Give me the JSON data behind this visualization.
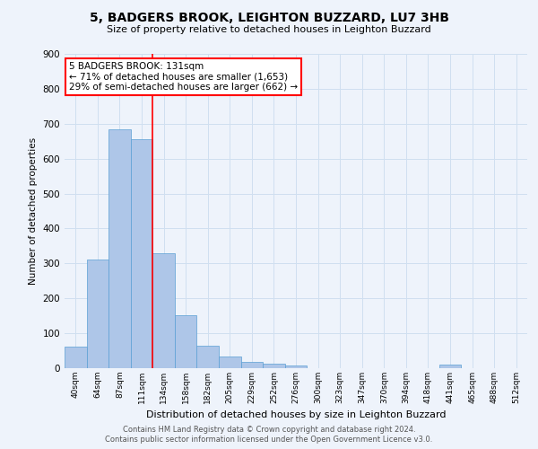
{
  "title": "5, BADGERS BROOK, LEIGHTON BUZZARD, LU7 3HB",
  "subtitle": "Size of property relative to detached houses in Leighton Buzzard",
  "xlabel": "Distribution of detached houses by size in Leighton Buzzard",
  "ylabel": "Number of detached properties",
  "footer_line1": "Contains HM Land Registry data © Crown copyright and database right 2024.",
  "footer_line2": "Contains public sector information licensed under the Open Government Licence v3.0.",
  "bin_labels": [
    "40sqm",
    "64sqm",
    "87sqm",
    "111sqm",
    "134sqm",
    "158sqm",
    "182sqm",
    "205sqm",
    "229sqm",
    "252sqm",
    "276sqm",
    "300sqm",
    "323sqm",
    "347sqm",
    "370sqm",
    "394sqm",
    "418sqm",
    "441sqm",
    "465sqm",
    "488sqm",
    "512sqm"
  ],
  "bar_heights": [
    63,
    310,
    685,
    655,
    328,
    153,
    65,
    34,
    17,
    12,
    7,
    0,
    0,
    0,
    0,
    0,
    0,
    10,
    0,
    0,
    0
  ],
  "bar_color": "#aec6e8",
  "bar_edge_color": "#5a9fd4",
  "grid_color": "#d0dff0",
  "background_color": "#eef3fb",
  "vline_x": 4,
  "vline_color": "red",
  "annotation_line1": "5 BADGERS BROOK: 131sqm",
  "annotation_line2": "← 71% of detached houses are smaller (1,653)",
  "annotation_line3": "29% of semi-detached houses are larger (662) →",
  "annotation_box_color": "white",
  "annotation_box_edge_color": "red",
  "ylim": [
    0,
    900
  ],
  "yticks": [
    0,
    100,
    200,
    300,
    400,
    500,
    600,
    700,
    800,
    900
  ]
}
